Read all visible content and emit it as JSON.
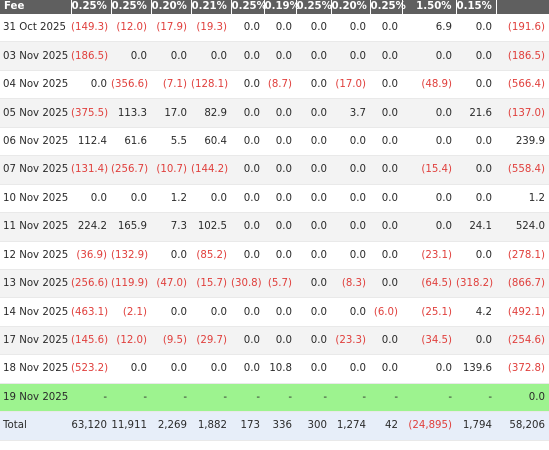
{
  "header": {
    "first": "Fee",
    "cols": [
      "0.25%",
      "0.25%",
      "0.20%",
      "0.21%",
      "0.25%",
      "0.19%",
      "0.25%",
      "0.20%",
      "0.25%",
      "1.50%",
      "0.15%",
      ""
    ]
  },
  "rows": [
    {
      "date": "31 Oct 2025",
      "v": [
        "(149.3)",
        "(12.0)",
        "(17.9)",
        "(19.3)",
        "0.0",
        "0.0",
        "0.0",
        "0.0",
        "0.0",
        "6.9",
        "0.0",
        "(191.6)"
      ]
    },
    {
      "date": "03 Nov 2025",
      "v": [
        "(186.5)",
        "0.0",
        "0.0",
        "0.0",
        "0.0",
        "0.0",
        "0.0",
        "0.0",
        "0.0",
        "0.0",
        "0.0",
        "(186.5)"
      ]
    },
    {
      "date": "04 Nov 2025",
      "v": [
        "0.0",
        "(356.6)",
        "(7.1)",
        "(128.1)",
        "0.0",
        "(8.7)",
        "0.0",
        "(17.0)",
        "0.0",
        "(48.9)",
        "0.0",
        "(566.4)"
      ]
    },
    {
      "date": "05 Nov 2025",
      "v": [
        "(375.5)",
        "113.3",
        "17.0",
        "82.9",
        "0.0",
        "0.0",
        "0.0",
        "3.7",
        "0.0",
        "0.0",
        "21.6",
        "(137.0)"
      ]
    },
    {
      "date": "06 Nov 2025",
      "v": [
        "112.4",
        "61.6",
        "5.5",
        "60.4",
        "0.0",
        "0.0",
        "0.0",
        "0.0",
        "0.0",
        "0.0",
        "0.0",
        "239.9"
      ]
    },
    {
      "date": "07 Nov 2025",
      "v": [
        "(131.4)",
        "(256.7)",
        "(10.7)",
        "(144.2)",
        "0.0",
        "0.0",
        "0.0",
        "0.0",
        "0.0",
        "(15.4)",
        "0.0",
        "(558.4)"
      ]
    },
    {
      "date": "10 Nov 2025",
      "v": [
        "0.0",
        "0.0",
        "1.2",
        "0.0",
        "0.0",
        "0.0",
        "0.0",
        "0.0",
        "0.0",
        "0.0",
        "0.0",
        "1.2"
      ]
    },
    {
      "date": "11 Nov 2025",
      "v": [
        "224.2",
        "165.9",
        "7.3",
        "102.5",
        "0.0",
        "0.0",
        "0.0",
        "0.0",
        "0.0",
        "0.0",
        "24.1",
        "524.0"
      ]
    },
    {
      "date": "12 Nov 2025",
      "v": [
        "(36.9)",
        "(132.9)",
        "0.0",
        "(85.2)",
        "0.0",
        "0.0",
        "0.0",
        "0.0",
        "0.0",
        "(23.1)",
        "0.0",
        "(278.1)"
      ]
    },
    {
      "date": "13 Nov 2025",
      "v": [
        "(256.6)",
        "(119.9)",
        "(47.0)",
        "(15.7)",
        "(30.8)",
        "(5.7)",
        "0.0",
        "(8.3)",
        "0.0",
        "(64.5)",
        "(318.2)",
        "(866.7)"
      ]
    },
    {
      "date": "14 Nov 2025",
      "v": [
        "(463.1)",
        "(2.1)",
        "0.0",
        "0.0",
        "0.0",
        "0.0",
        "0.0",
        "0.0",
        "(6.0)",
        "(25.1)",
        "4.2",
        "(492.1)"
      ]
    },
    {
      "date": "17 Nov 2025",
      "v": [
        "(145.6)",
        "(12.0)",
        "(9.5)",
        "(29.7)",
        "0.0",
        "0.0",
        "0.0",
        "(23.3)",
        "0.0",
        "(34.5)",
        "0.0",
        "(254.6)"
      ]
    },
    {
      "date": "18 Nov 2025",
      "v": [
        "(523.2)",
        "0.0",
        "0.0",
        "0.0",
        "0.0",
        "10.8",
        "0.0",
        "0.0",
        "0.0",
        "0.0",
        "139.6",
        "(372.8)"
      ]
    },
    {
      "date": "19 Nov 2025",
      "v": [
        "-",
        "-",
        "-",
        "-",
        "-",
        "-",
        "-",
        "-",
        "-",
        "-",
        "-",
        "0.0"
      ]
    }
  ],
  "total": {
    "label": "Total",
    "v": [
      "63,120",
      "11,911",
      "2,269",
      "1,882",
      "173",
      "336",
      "300",
      "1,274",
      "42",
      "(24,895)",
      "1,794",
      "58,206"
    ]
  },
  "colors": {
    "header_bg": "#5f5f5f",
    "negative": "#e0403d",
    "highlight_row": "#9df38f",
    "total_row": "#e7eef9",
    "alt_row": "#f3f3f3"
  }
}
